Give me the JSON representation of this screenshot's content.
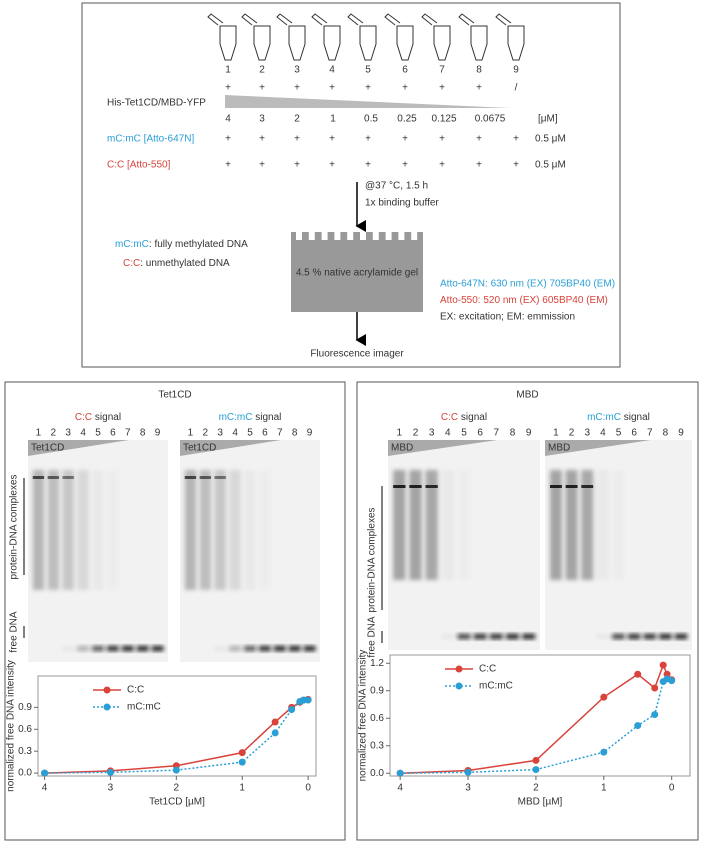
{
  "schematic": {
    "tube_labels": [
      "1",
      "2",
      "3",
      "4",
      "5",
      "6",
      "7",
      "8",
      "9"
    ],
    "protein_label": "His-Tet1CD/MBD-YFP",
    "protein_marks": [
      "+",
      "+",
      "+",
      "+",
      "+",
      "+",
      "+",
      "+",
      "/"
    ],
    "concentrations": [
      "4",
      "3",
      "2",
      "1",
      "0.5",
      "0.25",
      "0.125",
      "0.0675"
    ],
    "conc_unit": "[μM]",
    "mc_label": "mC:mC [Atto-647N]",
    "mc_marks": [
      "+",
      "+",
      "+",
      "+",
      "+",
      "+",
      "+",
      "+",
      "+"
    ],
    "mc_conc": "0.5 μM",
    "cc_label": "C:C [Atto-550]",
    "cc_marks": [
      "+",
      "+",
      "+",
      "+",
      "+",
      "+",
      "+",
      "+",
      "+"
    ],
    "cc_conc": "0.5 μM",
    "incubation": "@37 °C, 1.5 h",
    "buffer": "1x binding buffer",
    "gel": "4.5 % native acrylamide gel",
    "legend": [
      {
        "key": "mC:mC",
        "text": ": fully methylated DNA"
      },
      {
        "key": "C:C",
        "text": ": unmethylated DNA"
      }
    ],
    "filters": [
      "Atto-647N: 630 nm (EX) 705BP40 (EM)",
      "Atto-550: 520 nm (EX) 605BP40 (EM)",
      "EX: excitation; EM: emmission"
    ],
    "imager": "Fluorescence imager"
  },
  "panels": [
    {
      "title": "Tet1CD",
      "gels": [
        {
          "signal_key": "C:C",
          "signal_text": " signal",
          "label": "Tet1CD"
        },
        {
          "signal_key": "mC:mC",
          "signal_text": " signal",
          "label": "Tet1CD"
        }
      ],
      "lanes": [
        "1",
        "2",
        "3",
        "4",
        "5",
        "6",
        "7",
        "8",
        "9"
      ],
      "complex_label": "protein-DNA complexes",
      "free_label": "free DNA",
      "chart_data": {
        "type": "line",
        "x_label": "Tet1CD [µM]",
        "y_label": "normalized free DNA intensity",
        "x": [
          4,
          3,
          2,
          1,
          0.5,
          0.25,
          0.125,
          0.0675,
          0
        ],
        "series": [
          {
            "name": "C:C",
            "color": "#d9433a",
            "style": "solid",
            "values": [
              0,
              0.03,
              0.1,
              0.28,
              0.7,
              0.9,
              0.97,
              1.0,
              1.01
            ]
          },
          {
            "name": "mC:mC",
            "color": "#2a9fd6",
            "style": "dotted",
            "values": [
              0,
              0.01,
              0.04,
              0.15,
              0.55,
              0.87,
              0.98,
              1.0,
              1.0
            ]
          }
        ],
        "xlim": [
          4.1,
          -0.12
        ],
        "ylim": [
          -0.04,
          1.33
        ],
        "xticks": [
          4,
          3,
          2,
          1,
          0
        ],
        "yticks": [
          {
            "value": 0,
            "label": "0.0"
          },
          {
            "value": 0.3,
            "label": "0.3"
          },
          {
            "value": 0.6,
            "label": "0.6"
          },
          {
            "value": 0.9,
            "label": "0.9"
          }
        ],
        "legend": "upper left",
        "grid": false
      }
    },
    {
      "title": "MBD",
      "gels": [
        {
          "signal_key": "C:C",
          "signal_text": " signal",
          "label": "MBD"
        },
        {
          "signal_key": "mC:mC",
          "signal_text": " signal",
          "label": "MBD"
        }
      ],
      "lanes": [
        "1",
        "2",
        "3",
        "4",
        "5",
        "6",
        "7",
        "8",
        "9"
      ],
      "complex_label": "protein-DNA complexes",
      "free_label": "free DNA",
      "chart_data": {
        "type": "line",
        "x_label": "MBD [µM]",
        "y_label": "normalized free DNA intensity",
        "x": [
          4,
          3,
          2,
          1,
          0.5,
          0.25,
          0.125,
          0.0675,
          0
        ],
        "series": [
          {
            "name": "C:C",
            "color": "#d9433a",
            "style": "solid",
            "values": [
              0,
              0.03,
              0.14,
              0.83,
              1.08,
              0.93,
              1.18,
              1.08,
              1.02
            ]
          },
          {
            "name": "mC:mC",
            "color": "#2a9fd6",
            "style": "dotted",
            "values": [
              0,
              0.01,
              0.04,
              0.23,
              0.52,
              0.64,
              1.0,
              1.03,
              1.01
            ]
          }
        ],
        "xlim": [
          4.15,
          -0.27
        ],
        "ylim": [
          -0.03,
          1.29
        ],
        "xticks": [
          4,
          3,
          2,
          1,
          0
        ],
        "yticks": [
          {
            "value": 0,
            "label": "0.0"
          },
          {
            "value": 0.3,
            "label": "0.3"
          },
          {
            "value": 0.6,
            "label": "0.6"
          },
          {
            "value": 0.9,
            "label": "0.9"
          },
          {
            "value": 1.2,
            "label": "1.2"
          }
        ],
        "legend": "upper left",
        "grid": false
      }
    }
  ]
}
